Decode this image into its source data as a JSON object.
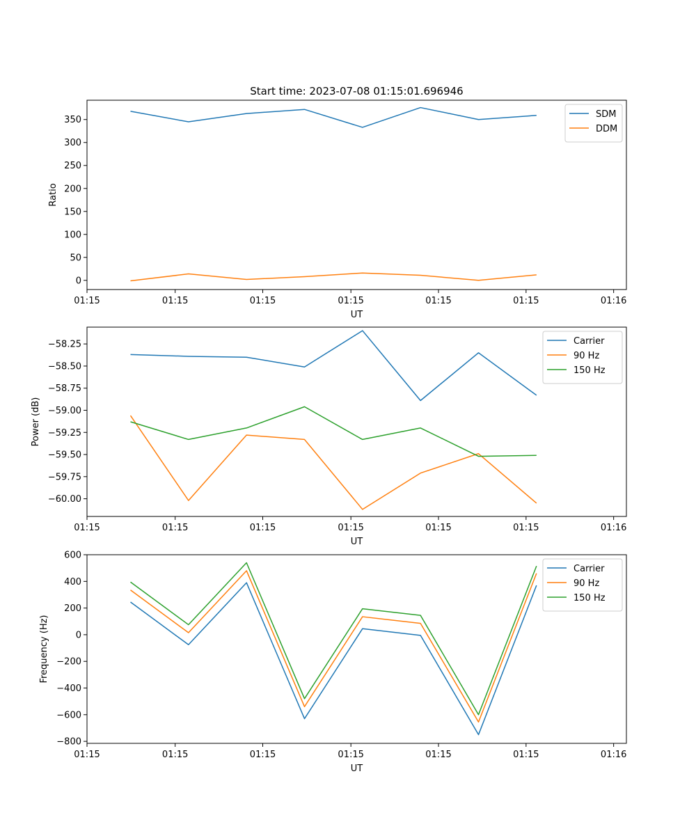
{
  "figure": {
    "title": "Start time: 2023-07-08 01:15:01.696946"
  },
  "colors": {
    "blue": "#1f77b4",
    "orange": "#ff7f0e",
    "green": "#2ca02c"
  },
  "chart_data": [
    {
      "type": "line",
      "title": "Start time: 2023-07-08 01:15:01.696946",
      "xlabel": "UT",
      "ylabel": "Ratio",
      "x": [
        0,
        1,
        2,
        3,
        4,
        5,
        6,
        7
      ],
      "xlim": [
        -0.75,
        8.55
      ],
      "xticks": [
        -0.75,
        0.77,
        2.28,
        3.8,
        5.31,
        6.82,
        8.33
      ],
      "xtick_labels": [
        "01:15",
        "01:15",
        "01:15",
        "01:15",
        "01:15",
        "01:15",
        "01:16"
      ],
      "ylim": [
        -20,
        392
      ],
      "yticks": [
        0,
        50,
        100,
        150,
        200,
        250,
        300,
        350
      ],
      "ytick_labels": [
        "0",
        "50",
        "100",
        "150",
        "200",
        "250",
        "300",
        "350"
      ],
      "legend": "top-right",
      "series": [
        {
          "name": "SDM",
          "color": "#1f77b4",
          "values": [
            368,
            345,
            363,
            372,
            333,
            376,
            350,
            359
          ]
        },
        {
          "name": "DDM",
          "color": "#ff7f0e",
          "values": [
            -1,
            14,
            2,
            8,
            16,
            11,
            0,
            12
          ]
        }
      ]
    },
    {
      "type": "line",
      "title": "",
      "xlabel": "UT",
      "ylabel": "Power (dB)",
      "x": [
        0,
        1,
        2,
        3,
        4,
        5,
        6,
        7
      ],
      "xlim": [
        -0.75,
        8.55
      ],
      "xticks": [
        -0.75,
        0.77,
        2.28,
        3.8,
        5.31,
        6.82,
        8.33
      ],
      "xtick_labels": [
        "01:15",
        "01:15",
        "01:15",
        "01:15",
        "01:15",
        "01:15",
        "01:16"
      ],
      "ylim": [
        -60.2,
        -58.06
      ],
      "yticks": [
        -60.0,
        -59.75,
        -59.5,
        -59.25,
        -59.0,
        -58.75,
        -58.5,
        -58.25
      ],
      "ytick_labels": [
        "−60.00",
        "−59.75",
        "−59.50",
        "−59.25",
        "−59.00",
        "−58.75",
        "−58.50",
        "−58.25"
      ],
      "legend": "top-right",
      "series": [
        {
          "name": "Carrier",
          "color": "#1f77b4",
          "values": [
            -58.37,
            -58.39,
            -58.4,
            -58.51,
            -58.1,
            -58.89,
            -58.35,
            -58.83
          ]
        },
        {
          "name": "90 Hz",
          "color": "#ff7f0e",
          "values": [
            -59.06,
            -60.02,
            -59.28,
            -59.33,
            -60.12,
            -59.71,
            -59.49,
            -60.05
          ]
        },
        {
          "name": "150 Hz",
          "color": "#2ca02c",
          "values": [
            -59.13,
            -59.33,
            -59.2,
            -58.96,
            -59.33,
            -59.2,
            -59.52,
            -59.51
          ]
        }
      ]
    },
    {
      "type": "line",
      "title": "",
      "xlabel": "UT",
      "ylabel": "Frequency (Hz)",
      "x": [
        0,
        1,
        2,
        3,
        4,
        5,
        6,
        7
      ],
      "xlim": [
        -0.75,
        8.55
      ],
      "xticks": [
        -0.75,
        0.77,
        2.28,
        3.8,
        5.31,
        6.82,
        8.33
      ],
      "xtick_labels": [
        "01:15",
        "01:15",
        "01:15",
        "01:15",
        "01:15",
        "01:15",
        "01:16"
      ],
      "ylim": [
        -815,
        600
      ],
      "yticks": [
        -800,
        -600,
        -400,
        -200,
        0,
        200,
        400,
        600
      ],
      "ytick_labels": [
        "−800",
        "−600",
        "−400",
        "−200",
        "0",
        "200",
        "400",
        "600"
      ],
      "legend": "top-right",
      "series": [
        {
          "name": "Carrier",
          "color": "#1f77b4",
          "values": [
            245,
            -75,
            390,
            -630,
            45,
            -5,
            -750,
            370
          ]
        },
        {
          "name": "90 Hz",
          "color": "#ff7f0e",
          "values": [
            335,
            15,
            480,
            -540,
            135,
            85,
            -655,
            460
          ]
        },
        {
          "name": "150 Hz",
          "color": "#2ca02c",
          "values": [
            395,
            75,
            540,
            -480,
            195,
            145,
            -600,
            515
          ]
        }
      ]
    }
  ]
}
